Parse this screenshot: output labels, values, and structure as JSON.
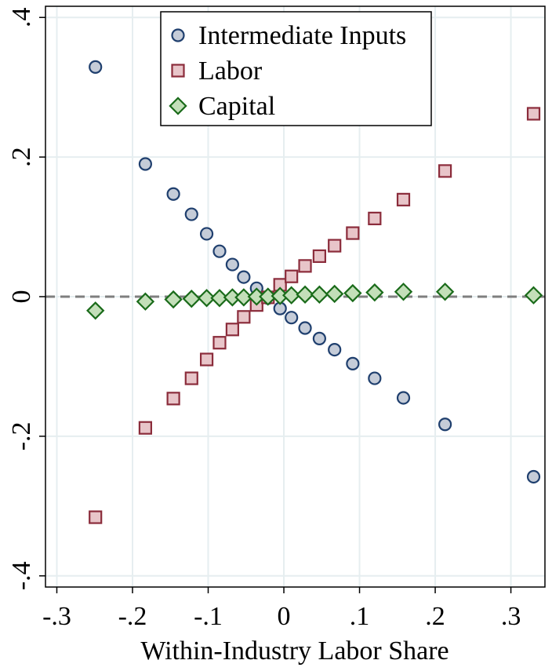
{
  "chart_data": {
    "type": "scatter",
    "xlabel": "Within-Industry Labor Share",
    "x": [
      -0.249,
      -0.183,
      -0.146,
      -0.122,
      -0.102,
      -0.085,
      -0.068,
      -0.053,
      -0.036,
      -0.021,
      -0.005,
      0.01,
      0.028,
      0.047,
      0.067,
      0.091,
      0.12,
      0.158,
      0.213,
      0.33
    ],
    "series": [
      {
        "name": "Intermediate Inputs",
        "marker": "circle",
        "color": "#c5ccd8",
        "edgecolor": "#1f3f6e",
        "values": [
          0.329,
          0.19,
          0.147,
          0.118,
          0.09,
          0.065,
          0.046,
          0.028,
          0.012,
          -0.002,
          -0.017,
          -0.03,
          -0.045,
          -0.06,
          -0.076,
          -0.096,
          -0.117,
          -0.145,
          -0.183,
          -0.258
        ]
      },
      {
        "name": "Labor",
        "marker": "square",
        "color": "#e8c5c9",
        "edgecolor": "#8b2c3b",
        "values": [
          -0.316,
          -0.188,
          -0.146,
          -0.117,
          -0.09,
          -0.066,
          -0.047,
          -0.029,
          -0.012,
          -0.001,
          0.017,
          0.029,
          0.044,
          0.058,
          0.073,
          0.091,
          0.112,
          0.139,
          0.18,
          0.262
        ]
      },
      {
        "name": "Capital",
        "marker": "diamond",
        "color": "#c3dfb9",
        "edgecolor": "#1a6b1a",
        "values": [
          -0.02,
          -0.007,
          -0.004,
          -0.003,
          -0.002,
          -0.002,
          -0.001,
          -0.001,
          0,
          0,
          0.001,
          0.002,
          0.003,
          0.003,
          0.004,
          0.005,
          0.006,
          0.007,
          0.007,
          0.002
        ]
      }
    ],
    "xlim": [
      -0.315,
      0.345
    ],
    "ylim": [
      -0.416,
      0.416
    ],
    "xticks": [
      {
        "value": -0.3,
        "label": "-.3"
      },
      {
        "value": -0.2,
        "label": "-.2"
      },
      {
        "value": -0.1,
        "label": "-.1"
      },
      0,
      {
        "value": 0.1,
        "label": ".1"
      },
      {
        "value": 0.2,
        "label": ".2"
      },
      {
        "value": 0.3,
        "label": ".3"
      }
    ],
    "yticks": [
      {
        "value": -0.4,
        "label": "-.4"
      },
      {
        "value": -0.2,
        "label": "-.2"
      },
      0,
      {
        "value": 0.2,
        "label": ".2"
      },
      {
        "value": 0.4,
        "label": ".4"
      }
    ],
    "yline": 0,
    "grid": true,
    "legend": "top"
  }
}
